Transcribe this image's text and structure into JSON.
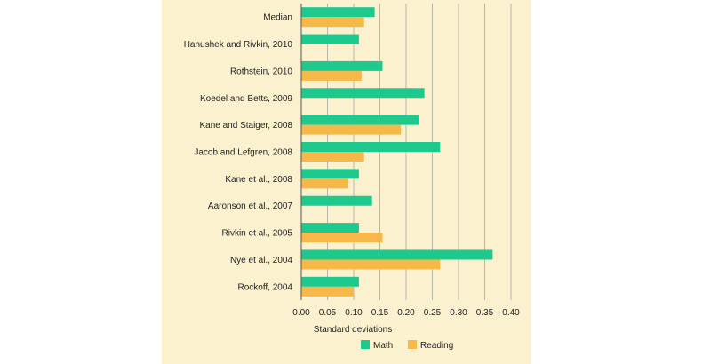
{
  "chart_data": {
    "type": "bar",
    "orientation": "horizontal",
    "categories": [
      "Median",
      "Hanushek and Rivkin, 2010",
      "Rothstein, 2010",
      "Koedel and Betts, 2009",
      "Kane and Staiger, 2008",
      "Jacob and Lefgren, 2008",
      "Kane et al., 2008",
      "Aaronson et al., 2007",
      "Rivkin et al., 2005",
      "Nye et al., 2004",
      "Rockoff, 2004"
    ],
    "series": [
      {
        "name": "Math",
        "color": "#1ec98d",
        "values": [
          0.14,
          0.11,
          0.155,
          0.235,
          0.225,
          0.265,
          0.11,
          0.135,
          0.11,
          0.365,
          0.11
        ]
      },
      {
        "name": "Reading",
        "color": "#f7b84a",
        "values": [
          0.12,
          null,
          0.115,
          null,
          0.19,
          0.12,
          0.09,
          null,
          0.155,
          0.265,
          0.1
        ]
      }
    ],
    "xlabel": "Standard deviations",
    "ylabel": "",
    "title": "",
    "xlim": [
      0.0,
      0.4
    ],
    "xticks": [
      "0.00",
      "0.05",
      "0.10",
      "0.15",
      "0.20",
      "0.25",
      "0.30",
      "0.35",
      "0.40"
    ],
    "grid": "vertical",
    "legend_position": "bottom-center"
  }
}
